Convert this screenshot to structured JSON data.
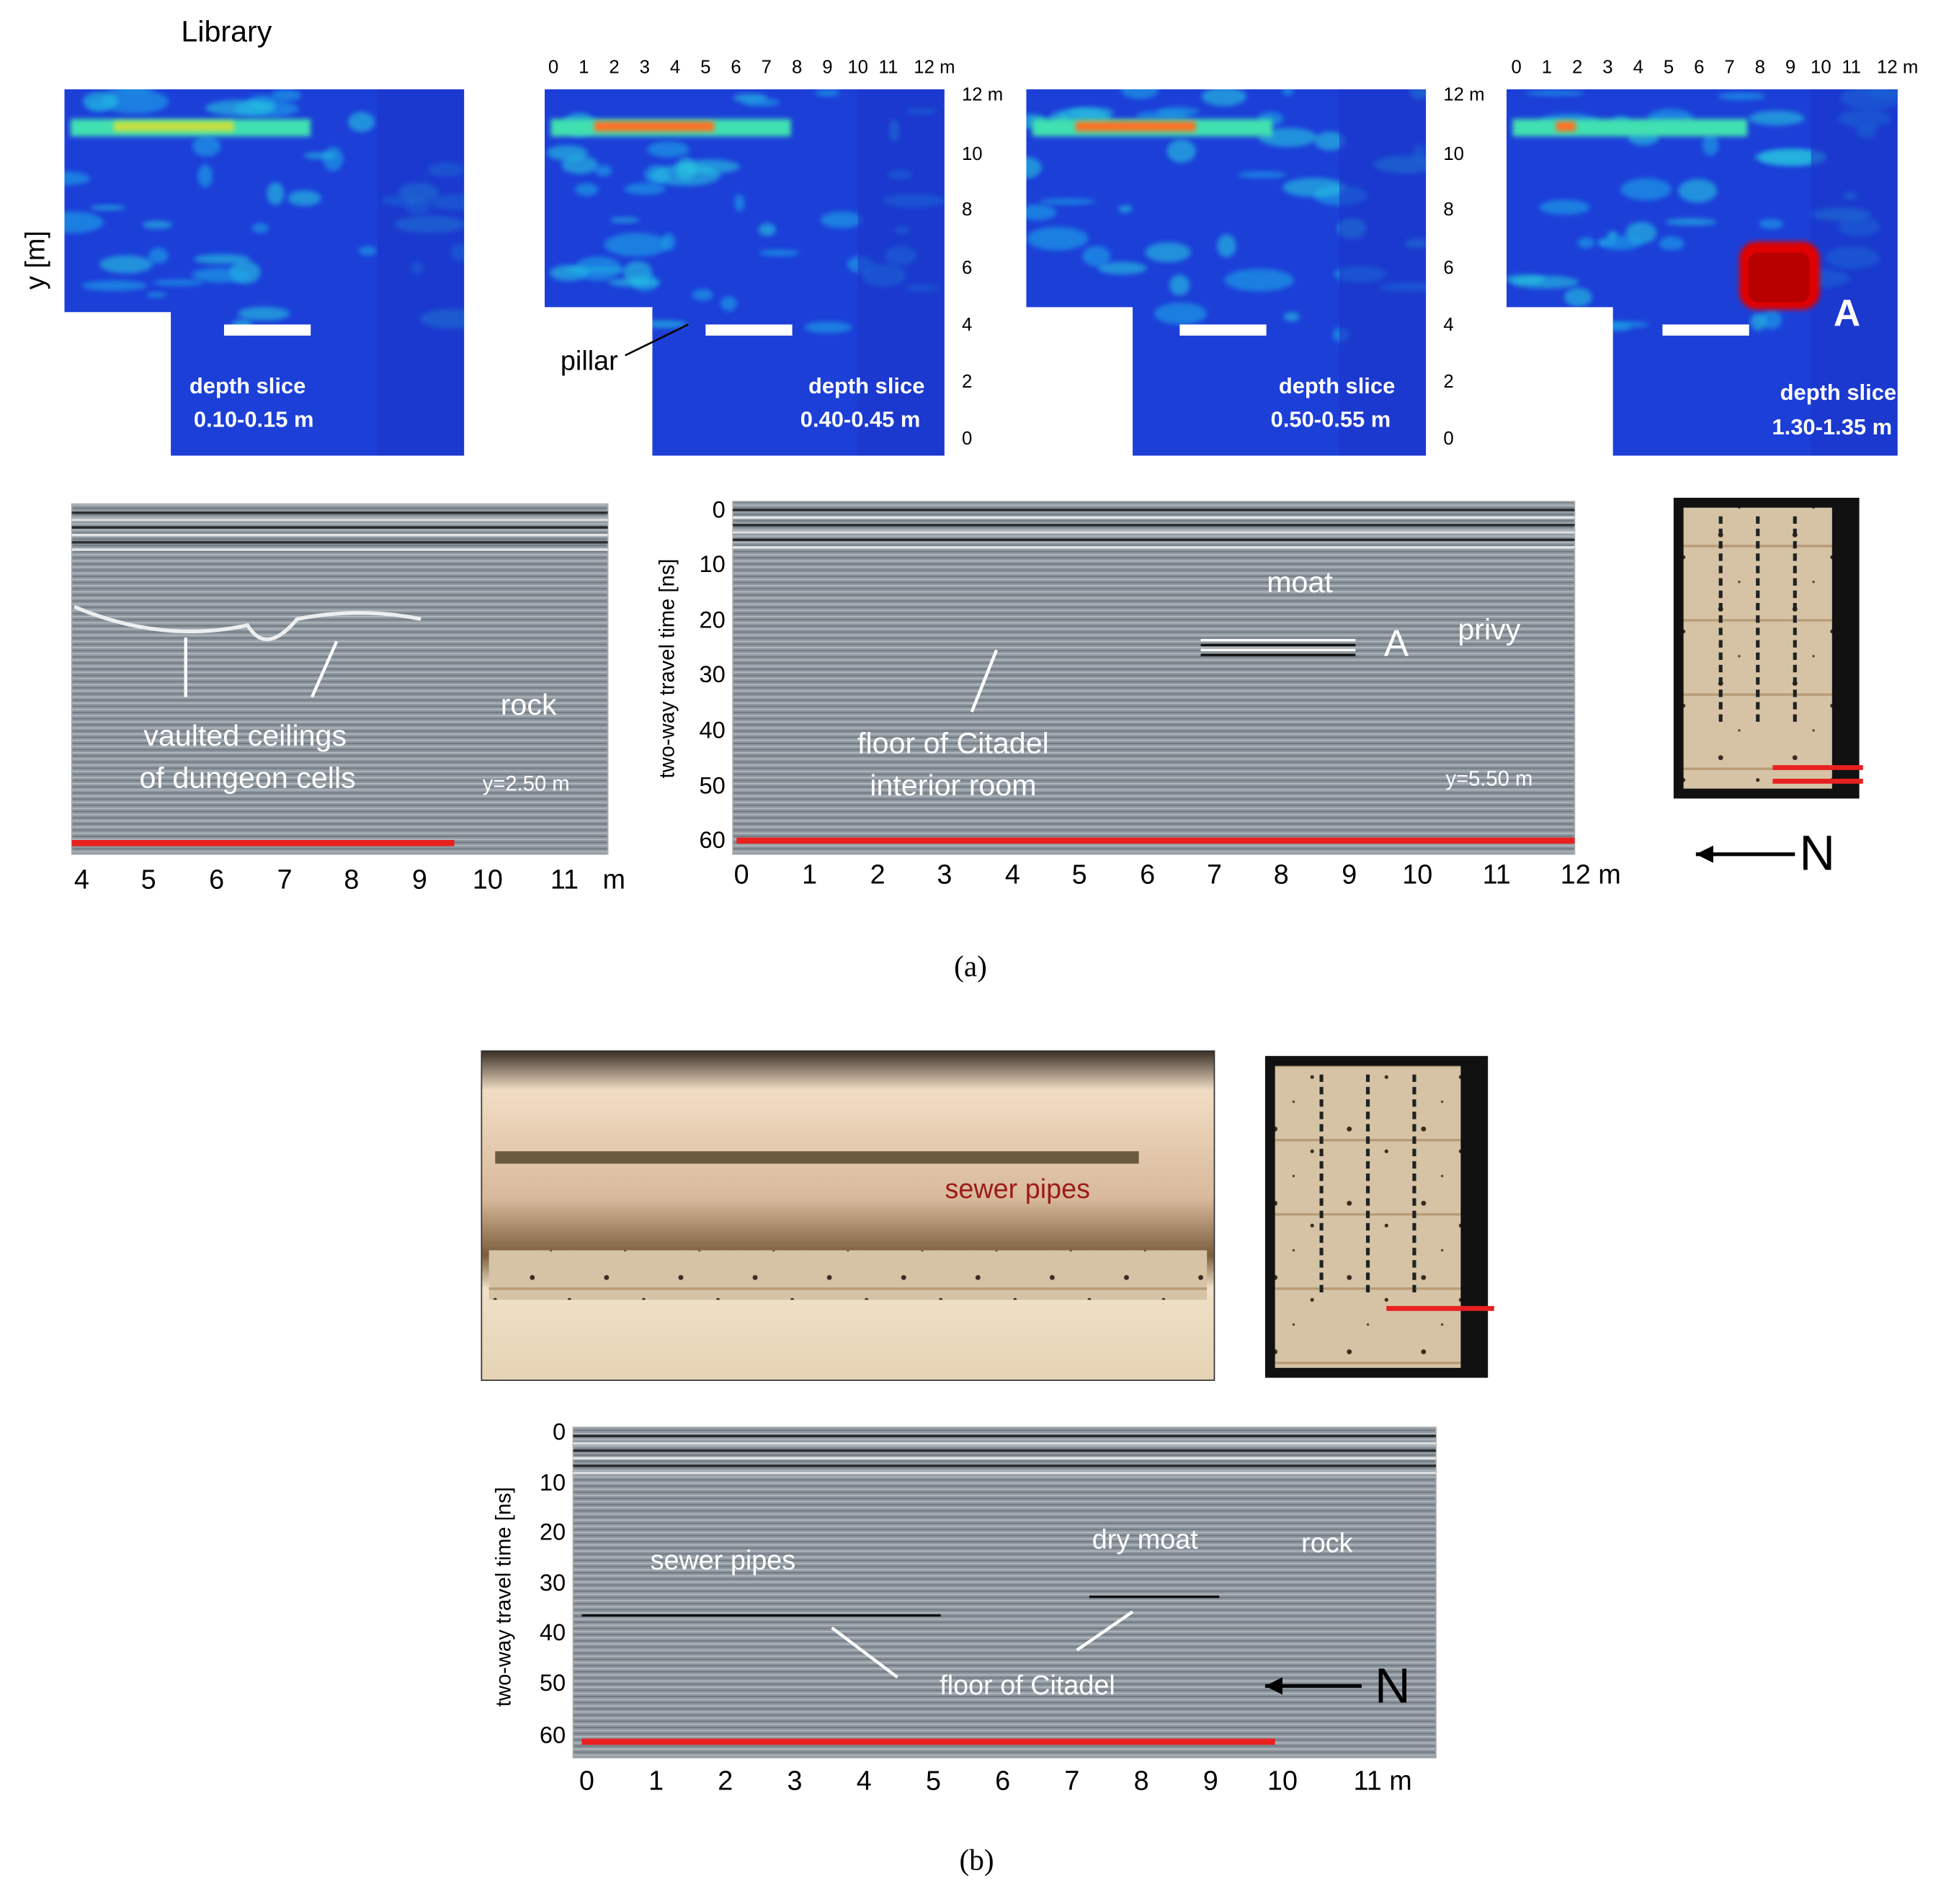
{
  "panel_a": {
    "label": "(a)",
    "title": "Library",
    "y_axis_label": "y [m]",
    "slice_x_ticks": [
      "0",
      "1",
      "2",
      "3",
      "4",
      "5",
      "6",
      "7",
      "8",
      "9",
      "10",
      "11",
      "12 m"
    ],
    "slice_y_ticks": [
      "12 m",
      "10",
      "8",
      "6",
      "4",
      "2",
      "0"
    ],
    "depth_slices": [
      {
        "caption": "depth slice",
        "range": "0.10-0.15 m"
      },
      {
        "caption": "depth slice",
        "range": "0.40-0.45 m"
      },
      {
        "caption": "depth slice",
        "range": "0.50-0.55 m"
      },
      {
        "caption": "depth slice",
        "range": "1.30-1.35 m"
      }
    ],
    "pillar_label": "pillar",
    "anomaly_label": "A",
    "radargram_1": {
      "annotations": [
        "vaulted ceilings",
        "of dungeon cells",
        "rock",
        "y=2.50 m"
      ],
      "x_ticks": [
        "4",
        "5",
        "6",
        "7",
        "8",
        "9",
        "10",
        "11",
        "m"
      ]
    },
    "radargram_2": {
      "y_axis_label": "two-way travel time [ns]",
      "y_ticks": [
        "0",
        "10",
        "20",
        "30",
        "40",
        "50",
        "60"
      ],
      "annotations": [
        "moat",
        "A",
        "privy",
        "floor of Citadel",
        "interior room",
        "y=5.50 m"
      ],
      "x_ticks": [
        "0",
        "1",
        "2",
        "3",
        "4",
        "5",
        "6",
        "7",
        "8",
        "9",
        "10",
        "11",
        "12 m"
      ]
    },
    "north_label": "N"
  },
  "panel_b": {
    "label": "(b)",
    "photo_label": "sewer pipes",
    "radargram": {
      "y_axis_label": "two-way travel time [ns]",
      "y_ticks": [
        "0",
        "10",
        "20",
        "30",
        "40",
        "50",
        "60"
      ],
      "annotations": [
        "sewer pipes",
        "dry moat",
        "rock",
        "floor of Citadel"
      ],
      "x_ticks": [
        "0",
        "1",
        "2",
        "3",
        "4",
        "5",
        "6",
        "7",
        "8",
        "9",
        "10",
        "11 m"
      ]
    },
    "north_label": "N"
  }
}
